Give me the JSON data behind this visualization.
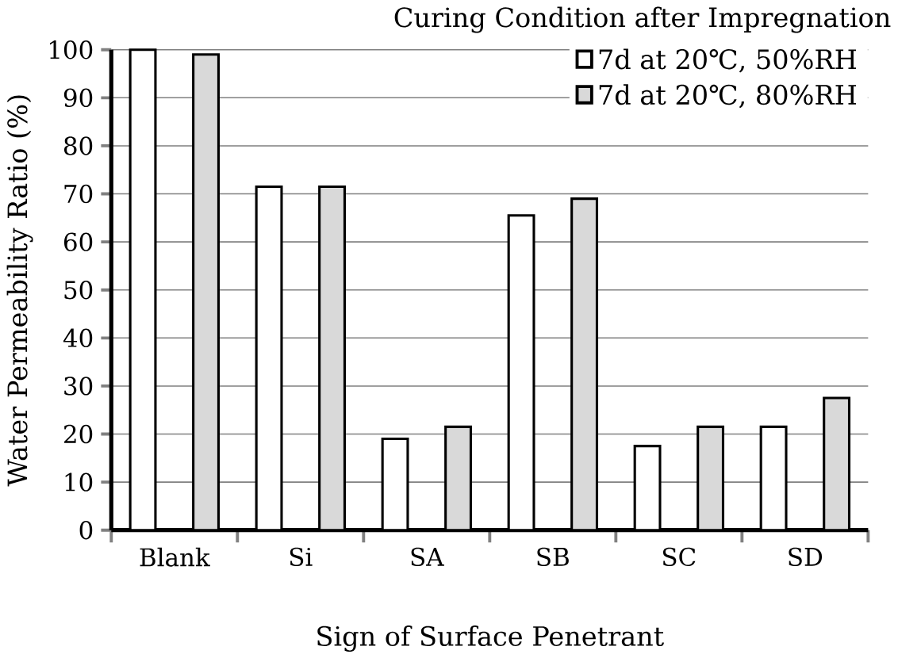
{
  "chart_data": {
    "type": "bar",
    "xlabel": "Sign of Surface Penetrant",
    "ylabel": "Water Permeability  Ratio (%)",
    "legend_title": "Curing Condition after Impregnation",
    "categories": [
      "Blank",
      "Si",
      "SA",
      "SB",
      "SC",
      "SD"
    ],
    "series": [
      {
        "name": "7d at 20℃, 50%RH",
        "color": "#ffffff",
        "values": [
          100,
          71.5,
          19,
          65.5,
          17.5,
          21.5
        ]
      },
      {
        "name": "7d at 20℃, 80%RH",
        "color": "#d9d9d9",
        "values": [
          99,
          71.5,
          21.5,
          69,
          21.5,
          27.5
        ]
      }
    ],
    "ylim": [
      0,
      100
    ],
    "yticks": [
      0,
      10,
      20,
      30,
      40,
      50,
      60,
      70,
      80,
      90,
      100
    ],
    "grid": "y",
    "legend": "top right"
  }
}
